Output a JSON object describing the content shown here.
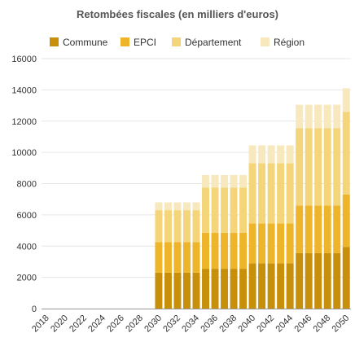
{
  "chart_data": {
    "type": "bar",
    "stacked": true,
    "title": "Retombées fiscales (en milliers d'euros)",
    "xlabel": "",
    "ylabel": "",
    "ylim": [
      0,
      16000
    ],
    "yticks": [
      0,
      2000,
      4000,
      6000,
      8000,
      10000,
      12000,
      14000,
      16000
    ],
    "grid": true,
    "legend_position": "top",
    "categories": [
      "2018",
      "2019",
      "2020",
      "2021",
      "2022",
      "2023",
      "2024",
      "2025",
      "2026",
      "2027",
      "2028",
      "2029",
      "2030",
      "2031",
      "2032",
      "2033",
      "2034",
      "2035",
      "2036",
      "2037",
      "2038",
      "2039",
      "2040",
      "2041",
      "2042",
      "2043",
      "2044",
      "2045",
      "2046",
      "2047",
      "2048",
      "2049",
      "2050"
    ],
    "xtick_labels": [
      "2018",
      "2020",
      "2022",
      "2024",
      "2026",
      "2028",
      "2030",
      "2032",
      "2034",
      "2036",
      "2038",
      "2040",
      "2042",
      "2044",
      "2046",
      "2048",
      "2050"
    ],
    "series": [
      {
        "name": "Commune",
        "color": "#c8900a",
        "values": [
          0,
          0,
          0,
          0,
          0,
          0,
          0,
          0,
          0,
          0,
          0,
          0,
          2300,
          2300,
          2300,
          2300,
          2300,
          2550,
          2550,
          2550,
          2550,
          2550,
          2900,
          2900,
          2900,
          2900,
          2900,
          3550,
          3550,
          3550,
          3550,
          3550,
          3950
        ]
      },
      {
        "name": "EPCI",
        "color": "#eeb52b",
        "values": [
          0,
          0,
          0,
          0,
          0,
          0,
          0,
          0,
          0,
          0,
          0,
          0,
          1950,
          1950,
          1950,
          1950,
          1950,
          2300,
          2300,
          2300,
          2300,
          2300,
          2550,
          2550,
          2550,
          2550,
          2550,
          3050,
          3050,
          3050,
          3050,
          3050,
          3350
        ]
      },
      {
        "name": "Département",
        "color": "#f4d57a",
        "values": [
          0,
          0,
          0,
          0,
          0,
          0,
          0,
          0,
          0,
          0,
          0,
          0,
          2050,
          2050,
          2050,
          2050,
          2050,
          2900,
          2900,
          2900,
          2900,
          2900,
          3850,
          3850,
          3850,
          3850,
          3850,
          4950,
          4950,
          4950,
          4950,
          4950,
          5300
        ]
      },
      {
        "name": "Région",
        "color": "#f8e8bd",
        "values": [
          0,
          0,
          0,
          0,
          0,
          0,
          0,
          0,
          0,
          0,
          0,
          0,
          500,
          500,
          500,
          500,
          500,
          800,
          800,
          800,
          800,
          800,
          1150,
          1150,
          1150,
          1150,
          1150,
          1500,
          1500,
          1500,
          1500,
          1500,
          1500
        ]
      }
    ]
  }
}
